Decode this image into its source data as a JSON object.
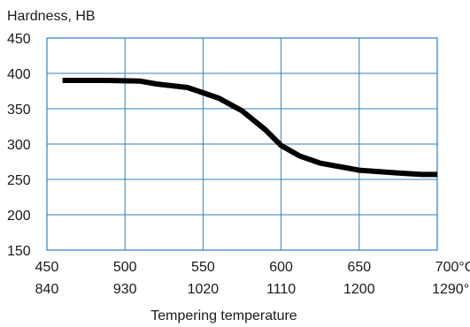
{
  "chart_data": {
    "type": "line",
    "ylabel": "Hardness, HB",
    "xlabel": "Tempering temperature",
    "x_ticks_c": [
      "450",
      "500",
      "550",
      "600",
      "650",
      "700°C"
    ],
    "x_ticks_f": [
      "840",
      "930",
      "1020",
      "1110",
      "1200",
      "1290°F"
    ],
    "y_ticks": [
      "450",
      "400",
      "350",
      "300",
      "250",
      "200",
      "150"
    ],
    "xlim": [
      450,
      700
    ],
    "ylim": [
      150,
      450
    ],
    "grid": true,
    "colors": {
      "line": "#000000",
      "grid": "#2f7fc1",
      "frame": "#2f7fc1"
    },
    "series": [
      {
        "x": [
          460,
          475,
          490,
          510,
          520,
          540,
          560,
          575,
          590,
          600,
          612,
          625,
          650,
          675,
          690,
          700
        ],
        "y": [
          390,
          390,
          390,
          389,
          385,
          380,
          365,
          347,
          320,
          298,
          283,
          273,
          263,
          259,
          257,
          257
        ]
      }
    ]
  }
}
